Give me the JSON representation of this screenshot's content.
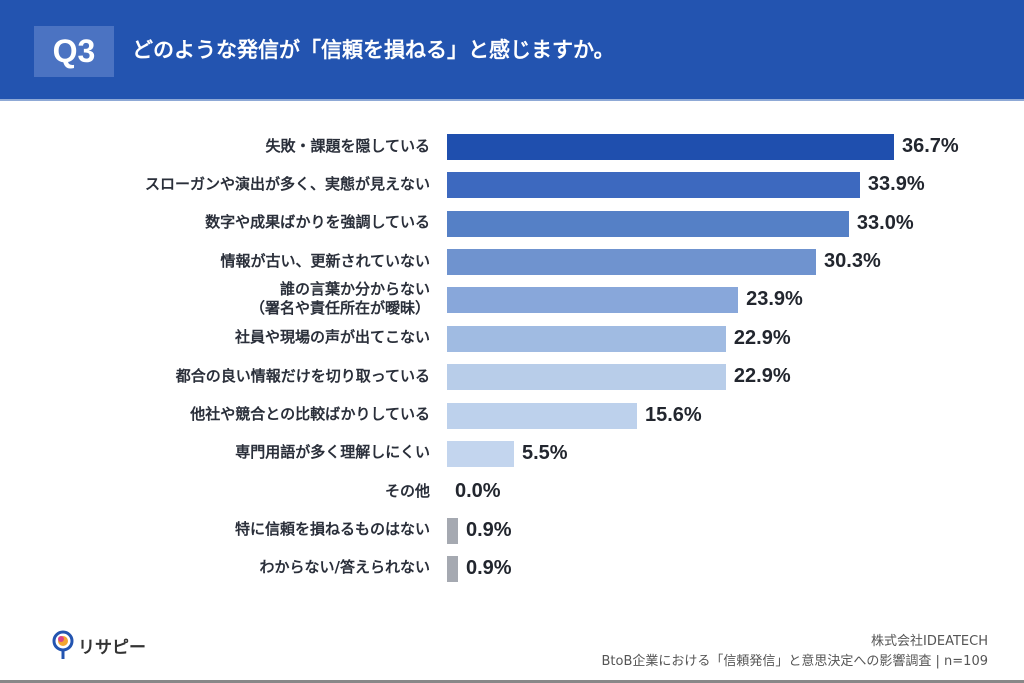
{
  "header": {
    "q_label": "Q3",
    "title": "どのような発信が「信頼を損ねる」と感じますか。"
  },
  "chart_data": {
    "type": "bar",
    "orientation": "horizontal",
    "categories": [
      "失敗・課題を隠している",
      "スローガンや演出が多く、実態が見えない",
      "数字や成果ばかりを強調している",
      "情報が古い、更新されていない",
      "誰の言葉か分からない\n（署名や責任所在が曖昧）",
      "社員や現場の声が出てこない",
      "都合の良い情報だけを切り取っている",
      "他社や競合との比較ばかりしている",
      "専門用語が多く理解しにくい",
      "その他",
      "特に信頼を損ねるものはない",
      "わからない/答えられない"
    ],
    "values": [
      36.7,
      33.9,
      33.0,
      30.3,
      23.9,
      22.9,
      22.9,
      15.6,
      5.5,
      0.0,
      0.9,
      0.9
    ],
    "value_labels": [
      "36.7%",
      "33.9%",
      "33.0%",
      "30.3%",
      "23.9%",
      "22.9%",
      "22.9%",
      "15.6%",
      "5.5%",
      "0.0%",
      "0.9%",
      "0.9%"
    ],
    "colors": [
      "#1f4fae",
      "#3d69bf",
      "#5580c6",
      "#6f93cf",
      "#88a7da",
      "#a0bbe2",
      "#b8cde9",
      "#bdd1ec",
      "#c3d5ee",
      "#c3d5ee",
      "#a5a9b1",
      "#a5a9b1"
    ],
    "unit": "%",
    "grid": false,
    "legend": "none"
  },
  "footer": {
    "logo_text": "リサピー",
    "company": "株式会社IDEATECH",
    "survey": "BtoB企業における「信頼発信」と意思決定への影響調査 | n=109"
  }
}
